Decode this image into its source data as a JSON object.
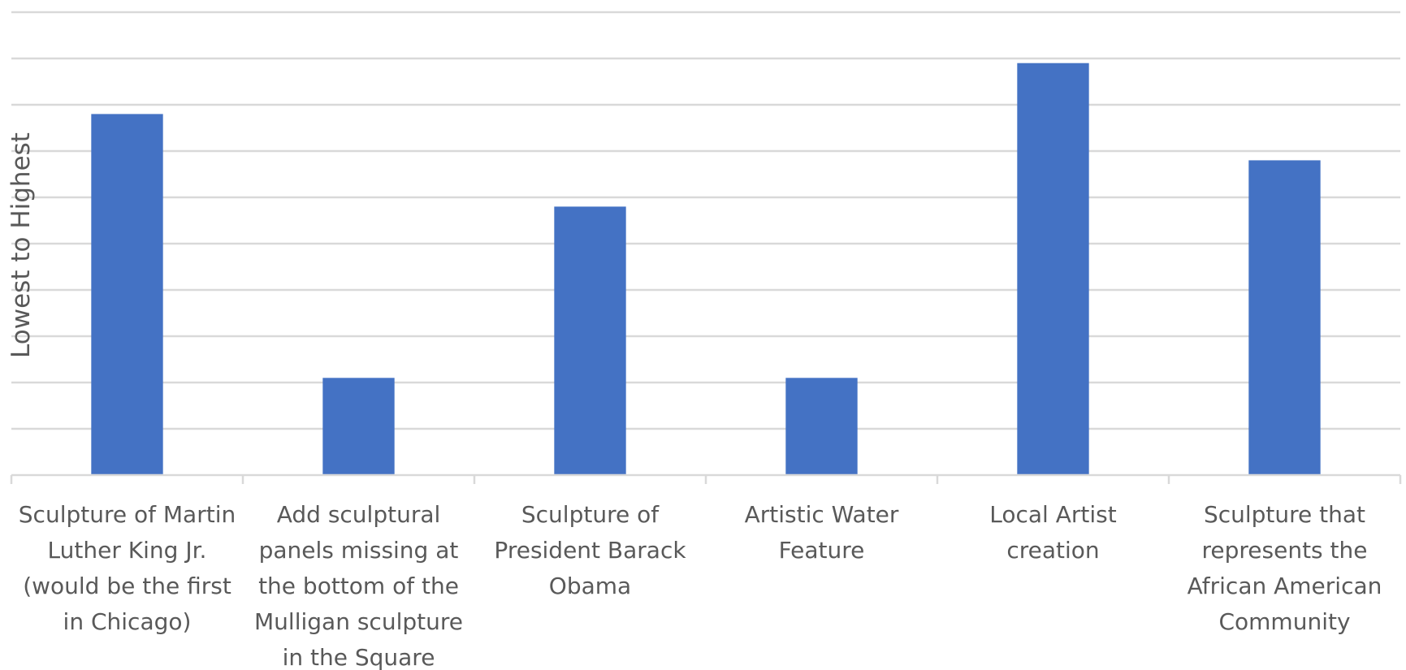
{
  "chart_data": {
    "type": "bar",
    "title": "",
    "xlabel": "",
    "ylabel": "Lowest to Highest",
    "ylim": [
      0,
      10
    ],
    "grid": true,
    "gridline_count": 10,
    "show_y_tick_labels": false,
    "bar_color": "#4472c4",
    "categories": [
      "Sculpture of Martin Luther King Jr. (would be the first in Chicago)",
      "Add sculptural panels missing at the bottom of the Mulligan sculpture in the Square",
      "Sculpture of President Barack Obama",
      "Artistic Water Feature",
      "Local Artist creation",
      "Sculpture that represents the African American Community"
    ],
    "category_lines": [
      [
        "Sculpture of Martin",
        "Luther King Jr.",
        "(would be the first",
        "in Chicago)"
      ],
      [
        "Add sculptural",
        "panels missing at",
        "the bottom of the",
        "Mulligan sculpture",
        "in the Square"
      ],
      [
        "Sculpture of",
        "President Barack",
        "Obama"
      ],
      [
        "Artistic Water",
        "Feature"
      ],
      [
        "Local Artist",
        "creation"
      ],
      [
        "Sculpture that",
        "represents the",
        "African American",
        "Community"
      ]
    ],
    "values": [
      7.8,
      2.1,
      5.8,
      2.1,
      8.9,
      6.8
    ]
  }
}
